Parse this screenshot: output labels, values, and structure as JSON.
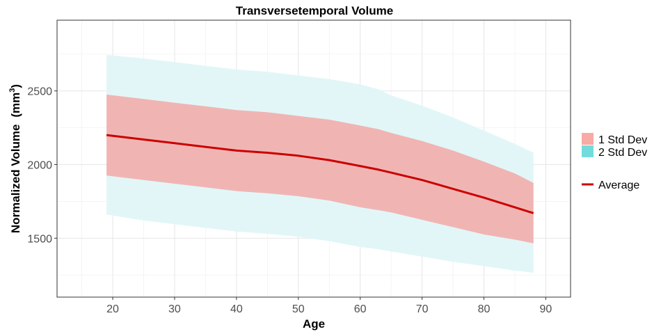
{
  "chart_data": {
    "type": "area",
    "title": "Transversetemporal Volume",
    "xlabel": "Age",
    "ylabel_main": "Normalized Volume",
    "ylabel_unit": "(mm",
    "ylabel_sup": "3",
    "ylabel_close": ")",
    "xlim": [
      11,
      94
    ],
    "ylim": [
      1100,
      2980
    ],
    "x_ticks": [
      20,
      30,
      40,
      50,
      60,
      70,
      80,
      90
    ],
    "y_ticks": [
      1500,
      2000,
      2500
    ],
    "grid": true,
    "legend_position": "right",
    "legend": {
      "fill_entries": [
        {
          "label": "1 Std Dev",
          "color": "#f8aaa5"
        },
        {
          "label": "2 Std Dev",
          "color": "#72dcdc"
        }
      ],
      "line_entry": {
        "label": "Average",
        "color": "#cc0000"
      }
    },
    "x": [
      19,
      25,
      30,
      35,
      40,
      45,
      50,
      55,
      60,
      63,
      65,
      70,
      75,
      80,
      85,
      88
    ],
    "series": [
      {
        "name": "Average",
        "values": [
          2200,
          2170,
          2145,
          2120,
          2095,
          2080,
          2060,
          2030,
          1990,
          1965,
          1945,
          1895,
          1835,
          1775,
          1710,
          1670
        ]
      },
      {
        "name": "1 Std Dev",
        "lower": [
          1925,
          1895,
          1870,
          1845,
          1820,
          1805,
          1785,
          1755,
          1710,
          1690,
          1675,
          1625,
          1575,
          1525,
          1490,
          1465
        ],
        "upper": [
          2475,
          2445,
          2420,
          2395,
          2370,
          2355,
          2330,
          2305,
          2265,
          2240,
          2215,
          2160,
          2095,
          2020,
          1940,
          1875
        ]
      },
      {
        "name": "2 Std Dev",
        "lower": [
          1660,
          1620,
          1595,
          1570,
          1545,
          1530,
          1510,
          1480,
          1440,
          1425,
          1410,
          1375,
          1340,
          1310,
          1280,
          1265
        ],
        "upper": [
          2745,
          2720,
          2695,
          2670,
          2645,
          2630,
          2605,
          2580,
          2545,
          2510,
          2470,
          2400,
          2320,
          2230,
          2140,
          2080
        ]
      }
    ],
    "colors": {
      "average": "#cc0000",
      "sd1": "#f0b5b3",
      "sd2": "#e2f6f8"
    }
  }
}
